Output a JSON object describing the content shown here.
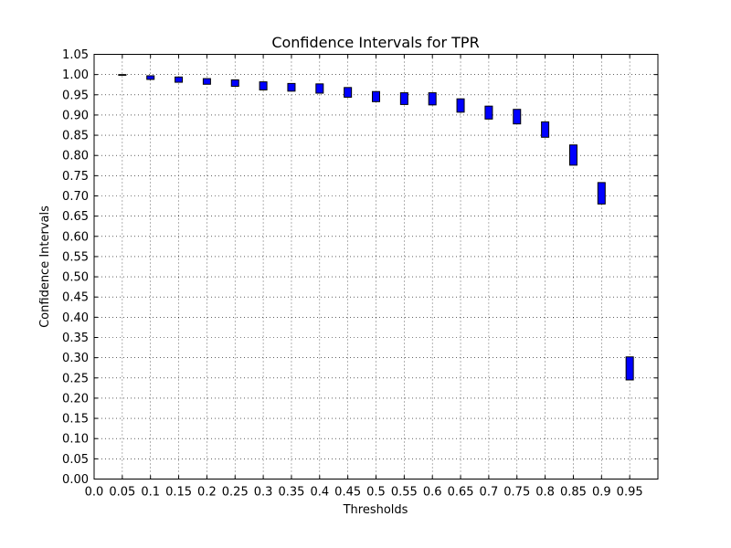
{
  "chart_data": {
    "type": "box",
    "title": "Confidence Intervals for TPR",
    "xlabel": "Thresholds",
    "ylabel": "Confidence Intervals",
    "xlim": [
      0,
      1.0
    ],
    "ylim": [
      0,
      1.05
    ],
    "x_ticks": [
      "0.0",
      "0.05",
      "0.1",
      "0.15",
      "0.2",
      "0.25",
      "0.3",
      "0.35",
      "0.4",
      "0.45",
      "0.5",
      "0.55",
      "0.6",
      "0.65",
      "0.7",
      "0.75",
      "0.8",
      "0.85",
      "0.9",
      "0.95"
    ],
    "y_ticks": [
      "0.00",
      "0.05",
      "0.10",
      "0.15",
      "0.20",
      "0.25",
      "0.30",
      "0.35",
      "0.40",
      "0.45",
      "0.50",
      "0.55",
      "0.60",
      "0.65",
      "0.70",
      "0.75",
      "0.80",
      "0.85",
      "0.90",
      "0.95",
      "1.00",
      "1.05"
    ],
    "grid": true,
    "box_color": "#0000ff",
    "series": [
      {
        "intervals": [
          {
            "x": 0.05,
            "low": 0.999,
            "high": 1.0
          },
          {
            "x": 0.1,
            "low": 0.988,
            "high": 0.997
          },
          {
            "x": 0.15,
            "low": 0.981,
            "high": 0.994
          },
          {
            "x": 0.2,
            "low": 0.976,
            "high": 0.99
          },
          {
            "x": 0.25,
            "low": 0.971,
            "high": 0.987
          },
          {
            "x": 0.3,
            "low": 0.962,
            "high": 0.982
          },
          {
            "x": 0.35,
            "low": 0.959,
            "high": 0.978
          },
          {
            "x": 0.4,
            "low": 0.954,
            "high": 0.977
          },
          {
            "x": 0.45,
            "low": 0.944,
            "high": 0.968
          },
          {
            "x": 0.5,
            "low": 0.933,
            "high": 0.958
          },
          {
            "x": 0.55,
            "low": 0.926,
            "high": 0.955
          },
          {
            "x": 0.6,
            "low": 0.925,
            "high": 0.955
          },
          {
            "x": 0.65,
            "low": 0.907,
            "high": 0.94
          },
          {
            "x": 0.7,
            "low": 0.89,
            "high": 0.922
          },
          {
            "x": 0.75,
            "low": 0.878,
            "high": 0.914
          },
          {
            "x": 0.8,
            "low": 0.845,
            "high": 0.883
          },
          {
            "x": 0.85,
            "low": 0.776,
            "high": 0.826
          },
          {
            "x": 0.9,
            "low": 0.68,
            "high": 0.733
          },
          {
            "x": 0.95,
            "low": 0.245,
            "high": 0.302
          }
        ]
      }
    ]
  }
}
